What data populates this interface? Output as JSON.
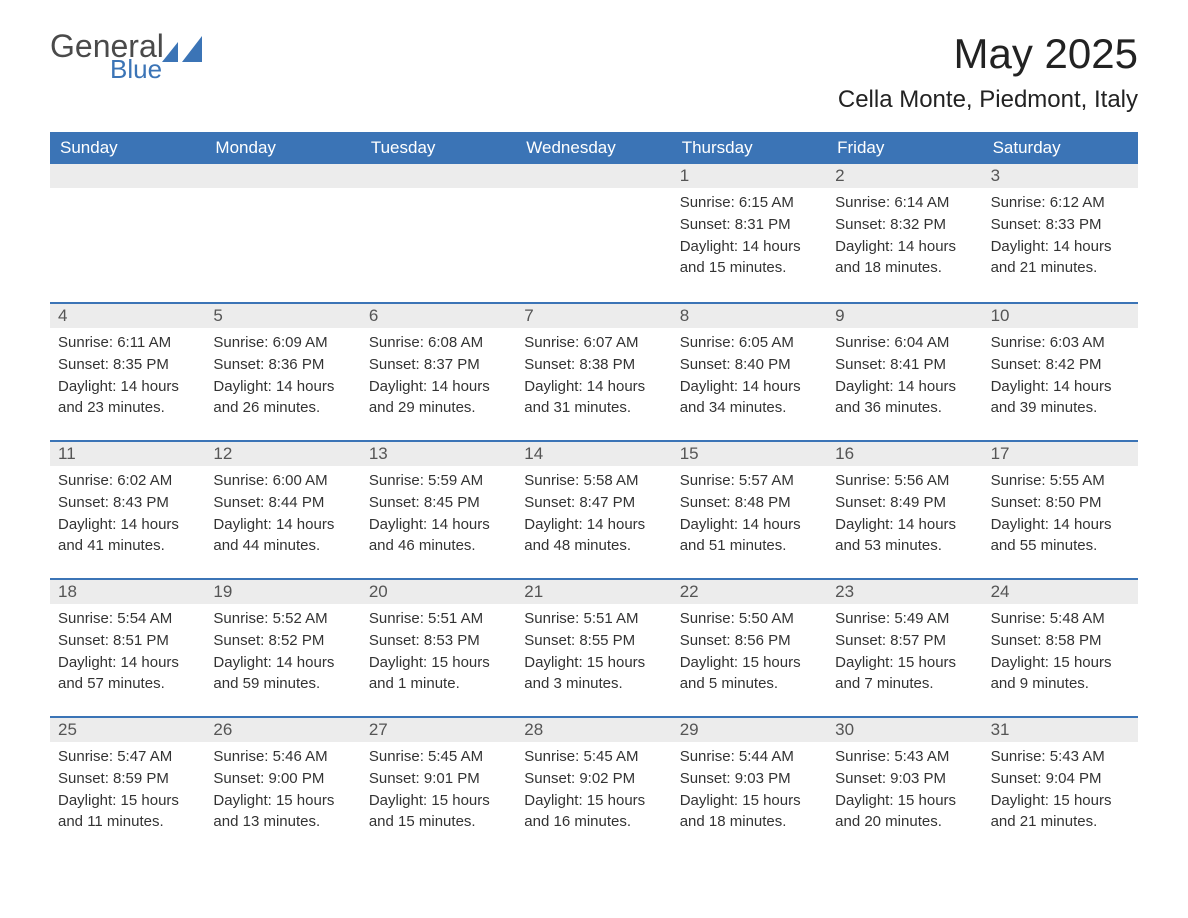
{
  "logo": {
    "general": "General",
    "blue": "Blue",
    "icon_color": "#3b74b6"
  },
  "title": "May 2025",
  "location": "Cella Monte, Piedmont, Italy",
  "colors": {
    "header_bg": "#3b74b6",
    "header_text": "#ffffff",
    "daynum_bg": "#ececec",
    "daynum_text": "#555555",
    "body_text": "#333333",
    "border": "#3b74b6",
    "page_bg": "#ffffff"
  },
  "fonts": {
    "title_size": 42,
    "location_size": 24,
    "weekday_size": 17,
    "daynum_size": 17,
    "body_size": 15
  },
  "weekdays": [
    "Sunday",
    "Monday",
    "Tuesday",
    "Wednesday",
    "Thursday",
    "Friday",
    "Saturday"
  ],
  "weeks": [
    [
      null,
      null,
      null,
      null,
      {
        "n": "1",
        "sunrise": "6:15 AM",
        "sunset": "8:31 PM",
        "daylight": "14 hours and 15 minutes."
      },
      {
        "n": "2",
        "sunrise": "6:14 AM",
        "sunset": "8:32 PM",
        "daylight": "14 hours and 18 minutes."
      },
      {
        "n": "3",
        "sunrise": "6:12 AM",
        "sunset": "8:33 PM",
        "daylight": "14 hours and 21 minutes."
      }
    ],
    [
      {
        "n": "4",
        "sunrise": "6:11 AM",
        "sunset": "8:35 PM",
        "daylight": "14 hours and 23 minutes."
      },
      {
        "n": "5",
        "sunrise": "6:09 AM",
        "sunset": "8:36 PM",
        "daylight": "14 hours and 26 minutes."
      },
      {
        "n": "6",
        "sunrise": "6:08 AM",
        "sunset": "8:37 PM",
        "daylight": "14 hours and 29 minutes."
      },
      {
        "n": "7",
        "sunrise": "6:07 AM",
        "sunset": "8:38 PM",
        "daylight": "14 hours and 31 minutes."
      },
      {
        "n": "8",
        "sunrise": "6:05 AM",
        "sunset": "8:40 PM",
        "daylight": "14 hours and 34 minutes."
      },
      {
        "n": "9",
        "sunrise": "6:04 AM",
        "sunset": "8:41 PM",
        "daylight": "14 hours and 36 minutes."
      },
      {
        "n": "10",
        "sunrise": "6:03 AM",
        "sunset": "8:42 PM",
        "daylight": "14 hours and 39 minutes."
      }
    ],
    [
      {
        "n": "11",
        "sunrise": "6:02 AM",
        "sunset": "8:43 PM",
        "daylight": "14 hours and 41 minutes."
      },
      {
        "n": "12",
        "sunrise": "6:00 AM",
        "sunset": "8:44 PM",
        "daylight": "14 hours and 44 minutes."
      },
      {
        "n": "13",
        "sunrise": "5:59 AM",
        "sunset": "8:45 PM",
        "daylight": "14 hours and 46 minutes."
      },
      {
        "n": "14",
        "sunrise": "5:58 AM",
        "sunset": "8:47 PM",
        "daylight": "14 hours and 48 minutes."
      },
      {
        "n": "15",
        "sunrise": "5:57 AM",
        "sunset": "8:48 PM",
        "daylight": "14 hours and 51 minutes."
      },
      {
        "n": "16",
        "sunrise": "5:56 AM",
        "sunset": "8:49 PM",
        "daylight": "14 hours and 53 minutes."
      },
      {
        "n": "17",
        "sunrise": "5:55 AM",
        "sunset": "8:50 PM",
        "daylight": "14 hours and 55 minutes."
      }
    ],
    [
      {
        "n": "18",
        "sunrise": "5:54 AM",
        "sunset": "8:51 PM",
        "daylight": "14 hours and 57 minutes."
      },
      {
        "n": "19",
        "sunrise": "5:52 AM",
        "sunset": "8:52 PM",
        "daylight": "14 hours and 59 minutes."
      },
      {
        "n": "20",
        "sunrise": "5:51 AM",
        "sunset": "8:53 PM",
        "daylight": "15 hours and 1 minute."
      },
      {
        "n": "21",
        "sunrise": "5:51 AM",
        "sunset": "8:55 PM",
        "daylight": "15 hours and 3 minutes."
      },
      {
        "n": "22",
        "sunrise": "5:50 AM",
        "sunset": "8:56 PM",
        "daylight": "15 hours and 5 minutes."
      },
      {
        "n": "23",
        "sunrise": "5:49 AM",
        "sunset": "8:57 PM",
        "daylight": "15 hours and 7 minutes."
      },
      {
        "n": "24",
        "sunrise": "5:48 AM",
        "sunset": "8:58 PM",
        "daylight": "15 hours and 9 minutes."
      }
    ],
    [
      {
        "n": "25",
        "sunrise": "5:47 AM",
        "sunset": "8:59 PM",
        "daylight": "15 hours and 11 minutes."
      },
      {
        "n": "26",
        "sunrise": "5:46 AM",
        "sunset": "9:00 PM",
        "daylight": "15 hours and 13 minutes."
      },
      {
        "n": "27",
        "sunrise": "5:45 AM",
        "sunset": "9:01 PM",
        "daylight": "15 hours and 15 minutes."
      },
      {
        "n": "28",
        "sunrise": "5:45 AM",
        "sunset": "9:02 PM",
        "daylight": "15 hours and 16 minutes."
      },
      {
        "n": "29",
        "sunrise": "5:44 AM",
        "sunset": "9:03 PM",
        "daylight": "15 hours and 18 minutes."
      },
      {
        "n": "30",
        "sunrise": "5:43 AM",
        "sunset": "9:03 PM",
        "daylight": "15 hours and 20 minutes."
      },
      {
        "n": "31",
        "sunrise": "5:43 AM",
        "sunset": "9:04 PM",
        "daylight": "15 hours and 21 minutes."
      }
    ]
  ],
  "labels": {
    "sunrise": "Sunrise:",
    "sunset": "Sunset:",
    "daylight": "Daylight:"
  }
}
